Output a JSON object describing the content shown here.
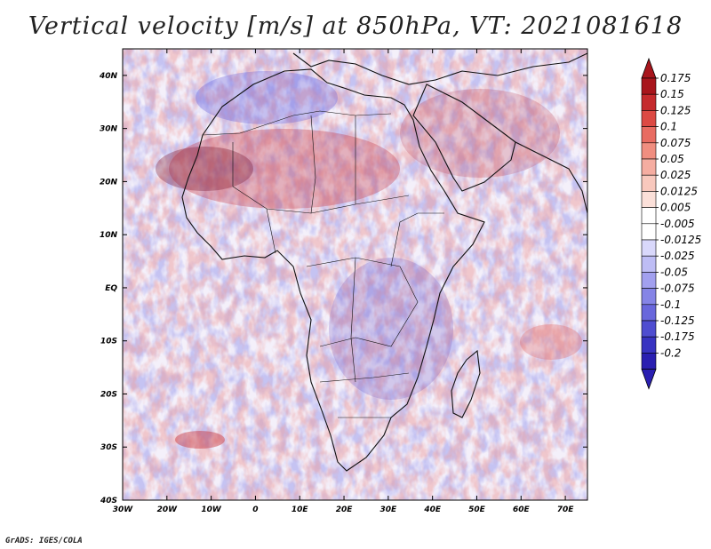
{
  "title": "Vertical velocity [m/s] at 850hPa, VT: 2021081618",
  "credit": "GrADS: IGES/COLA",
  "map": {
    "lat_labels": [
      "40N",
      "30N",
      "20N",
      "10N",
      "EQ",
      "10S",
      "20S",
      "30S",
      "40S"
    ],
    "lon_labels": [
      "30W",
      "20W",
      "10W",
      "0",
      "10E",
      "20E",
      "30E",
      "40E",
      "50E",
      "60E",
      "70E"
    ],
    "extent": {
      "lon_min": -30,
      "lon_max": 75,
      "lat_min": -40,
      "lat_max": 45
    }
  },
  "colorbar": {
    "labels": [
      "0.175",
      "0.15",
      "0.125",
      "0.1",
      "0.075",
      "0.05",
      "0.025",
      "0.0125",
      "0.005",
      "-0.005",
      "-0.0125",
      "-0.025",
      "-0.05",
      "-0.075",
      "-0.1",
      "-0.125",
      "-0.175",
      "-0.2"
    ],
    "colors": [
      "#a8151c",
      "#c52a2d",
      "#dc4a44",
      "#e86c62",
      "#f08e80",
      "#f5ada1",
      "#f8c8bd",
      "#fbe0d9",
      "#ffffff",
      "#ffffff",
      "#d9d8fb",
      "#bebdf5",
      "#a2a0ef",
      "#8584e6",
      "#6967dc",
      "#4f4dd0",
      "#3833c1",
      "#2a1fb1"
    ],
    "top_arrow_color": "#a8151c",
    "bottom_arrow_color": "#2a1fb1"
  }
}
